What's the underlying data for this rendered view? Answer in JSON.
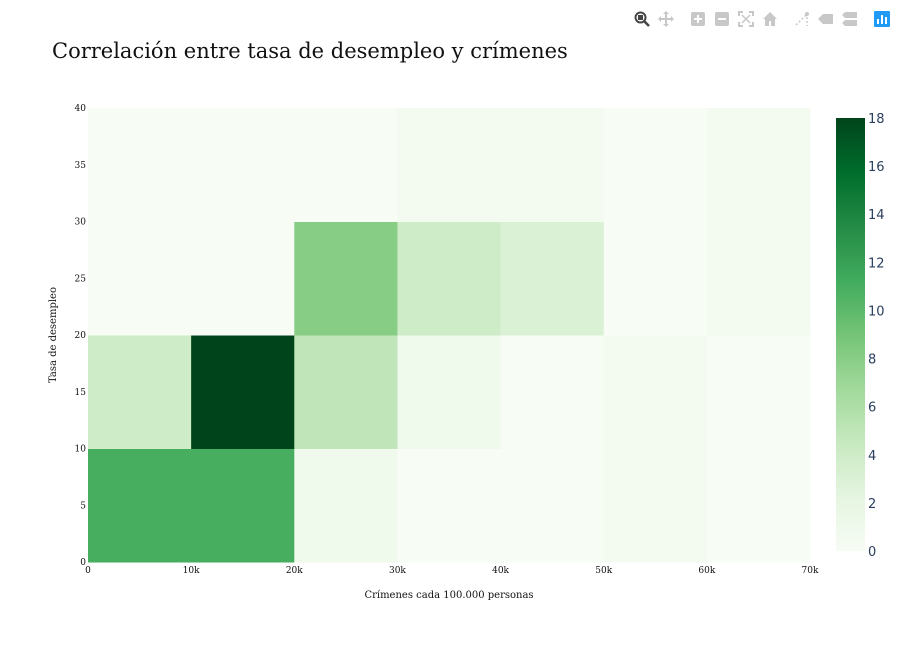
{
  "modebar": {
    "icons": [
      "zoom-icon",
      "pan-icon",
      "zoom-in-icon",
      "zoom-out-icon",
      "autoscale-icon",
      "home-icon",
      "spike-lines-icon",
      "hover-closest-icon",
      "hover-compare-icon",
      "plotly-logo-icon"
    ],
    "accent": "#1f9af7",
    "active": "#444444",
    "inactive": "#c8c8c8"
  },
  "chart_data": {
    "type": "heatmap",
    "title": "Correlación entre tasa de desempleo y crímenes",
    "xlabel": "Crímenes cada 100.000 personas",
    "ylabel": "Tasa de desempleo",
    "x_edges": [
      0,
      10000,
      20000,
      30000,
      40000,
      50000,
      60000,
      70000
    ],
    "y_edges": [
      0,
      10,
      20,
      30,
      40
    ],
    "x_tick_values": [
      0,
      10000,
      20000,
      30000,
      40000,
      50000,
      60000,
      70000
    ],
    "x_tick_labels": [
      "0",
      "10k",
      "20k",
      "30k",
      "40k",
      "50k",
      "60k",
      "70k"
    ],
    "y_tick_values": [
      0,
      5,
      10,
      15,
      20,
      25,
      30,
      35,
      40
    ],
    "y_tick_labels": [
      "0",
      "5",
      "10",
      "15",
      "20",
      "25",
      "30",
      "35",
      "40"
    ],
    "z": [
      [
        11,
        11,
        1,
        0,
        0,
        0.5,
        0
      ],
      [
        4,
        18,
        5,
        1,
        0,
        0.5,
        0
      ],
      [
        0,
        0,
        8,
        4,
        3,
        0,
        0.5
      ],
      [
        0,
        0,
        0,
        0.5,
        0.5,
        0,
        0.5
      ]
    ],
    "zmin": 0,
    "zmax": 18,
    "colorscale": "Greens",
    "colorbar_ticks": [
      0,
      2,
      4,
      6,
      8,
      10,
      12,
      14,
      16,
      18
    ],
    "colors": {
      "low": "#f7fcf5",
      "high": "#00441b"
    }
  }
}
